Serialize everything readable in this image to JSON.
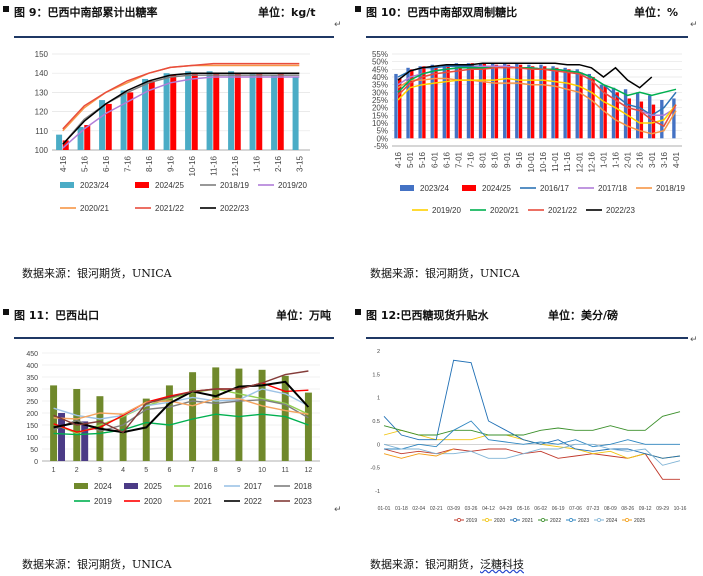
{
  "return_mark": "↵",
  "panels": {
    "p1": {
      "title": "图 9：巴西中南部累计出糖率",
      "unit": "单位：kg/t",
      "source": "数据来源：银河期货，UNICA"
    },
    "p2": {
      "title": "图 10：巴西中南部双周制糖比",
      "unit": "单位：%",
      "source": "数据来源：银河期货，UNICA"
    },
    "p3": {
      "title": "图 11：巴西出口",
      "unit": "单位：万吨",
      "source": "数据来源：银河期货，UNICA"
    },
    "p4": {
      "title": "图 12:巴西糖现货升贴水",
      "unit": "单位：美分/磅",
      "source_prefix": "数据来源：银河期货，",
      "source_link": "泛糖科技"
    }
  },
  "chart_data": [
    {
      "id": "c1",
      "type": "bar+line",
      "title": "",
      "xlabel": "",
      "ylabel": "",
      "ylim": [
        100,
        150
      ],
      "yticks": [
        100,
        110,
        120,
        130,
        140,
        150
      ],
      "categories": [
        "4-16",
        "5-16",
        "6-16",
        "7-16",
        "8-16",
        "9-16",
        "10-16",
        "11-16",
        "12-16",
        "1-16",
        "2-16",
        "3-15"
      ],
      "bars": [
        {
          "name": "2023/24",
          "color": "#4bacc6",
          "values": [
            108,
            112,
            126,
            131,
            137,
            140,
            141,
            141,
            141,
            140,
            139,
            138
          ]
        },
        {
          "name": "2024/25",
          "color": "#ff0000",
          "values": [
            105,
            113,
            124,
            130,
            136,
            139,
            140,
            140,
            140,
            140,
            140,
            null
          ]
        }
      ],
      "lines": [
        {
          "name": "2018/19",
          "color": "#7f7f7f",
          "values": [
            103,
            116,
            124,
            130,
            135,
            138,
            139,
            139,
            139,
            139,
            139,
            139
          ]
        },
        {
          "name": "2019/20",
          "color": "#b07dd8",
          "values": [
            101,
            111,
            119,
            125,
            131,
            135,
            137,
            138,
            138,
            138,
            138,
            138
          ]
        },
        {
          "name": "2020/21",
          "color": "#f79646",
          "values": [
            110,
            122,
            130,
            135,
            140,
            143,
            144,
            144,
            144,
            144,
            144,
            144
          ]
        },
        {
          "name": "2021/22",
          "color": "#e84c3d",
          "values": [
            111,
            123,
            130,
            136,
            140,
            143,
            144,
            145,
            145,
            145,
            145,
            145
          ]
        },
        {
          "name": "2022/23",
          "color": "#000000",
          "values": [
            103,
            115,
            124,
            131,
            136,
            139,
            140,
            140,
            140,
            140,
            140,
            140
          ]
        }
      ]
    },
    {
      "id": "c2",
      "type": "bar+line",
      "title": "",
      "xlabel": "",
      "ylabel": "",
      "ylim": [
        -5,
        55
      ],
      "yticks": [
        "55%",
        "50%",
        "45%",
        "40%",
        "35%",
        "30%",
        "25%",
        "20%",
        "15%",
        "10%",
        "5%",
        "0%",
        "-5%"
      ],
      "categories": [
        "4-16",
        "5-01",
        "5-16",
        "6-01",
        "6-16",
        "7-01",
        "7-16",
        "8-01",
        "8-16",
        "9-01",
        "9-16",
        "10-01",
        "10-16",
        "11-01",
        "11-16",
        "12-01",
        "12-16",
        "1-01",
        "1-16",
        "2-01",
        "2-16",
        "3-01",
        "3-16",
        "4-01"
      ],
      "bars": [
        {
          "name": "2023/24",
          "color": "#4472c4",
          "values": [
            42,
            46,
            47,
            48,
            48,
            49,
            49,
            49,
            49,
            49,
            49,
            48,
            48,
            47,
            46,
            45,
            42,
            35,
            33,
            32,
            30,
            28,
            25,
            26
          ]
        },
        {
          "name": "2024/25",
          "color": "#ff0000",
          "values": [
            39,
            45,
            47,
            47,
            48,
            48,
            49,
            49,
            48,
            48,
            48,
            47,
            47,
            46,
            45,
            43,
            40,
            34,
            30,
            26,
            24,
            22,
            null,
            null
          ]
        }
      ],
      "lines": [
        {
          "name": "2016/17",
          "color": "#2e75b6",
          "values": [
            40,
            44,
            46,
            46,
            47,
            47,
            47,
            47,
            47,
            47,
            46,
            46,
            45,
            45,
            44,
            43,
            40,
            35,
            28,
            22,
            20,
            15,
            20,
            30
          ]
        },
        {
          "name": "2017/18",
          "color": "#b07dd8",
          "values": [
            35,
            40,
            42,
            44,
            45,
            46,
            46,
            47,
            47,
            47,
            46,
            46,
            45,
            45,
            44,
            42,
            38,
            30,
            25,
            20,
            18,
            15,
            15,
            20
          ]
        },
        {
          "name": "2018/19",
          "color": "#f79646",
          "values": [
            33,
            38,
            38,
            39,
            39,
            38,
            38,
            37,
            36,
            36,
            36,
            35,
            35,
            34,
            32,
            30,
            25,
            18,
            12,
            8,
            5,
            3,
            5,
            18
          ]
        },
        {
          "name": "2019/20",
          "color": "#ffd000",
          "values": [
            25,
            33,
            35,
            36,
            37,
            38,
            38,
            38,
            38,
            39,
            38,
            38,
            38,
            37,
            36,
            34,
            30,
            24,
            20,
            15,
            10,
            10,
            12,
            22
          ]
        },
        {
          "name": "2020/21",
          "color": "#00b050",
          "values": [
            30,
            38,
            42,
            44,
            45,
            46,
            46,
            46,
            46,
            46,
            46,
            46,
            45,
            45,
            44,
            43,
            40,
            35,
            32,
            28,
            30,
            28,
            30,
            32
          ]
        },
        {
          "name": "2021/22",
          "color": "#e84c3d",
          "values": [
            28,
            36,
            40,
            42,
            43,
            44,
            45,
            45,
            46,
            46,
            46,
            45,
            45,
            44,
            43,
            42,
            38,
            30,
            25,
            20,
            18,
            12,
            8,
            22
          ]
        },
        {
          "name": "2022/23",
          "color": "#000000",
          "values": [
            38,
            44,
            46,
            47,
            48,
            48,
            48,
            49,
            49,
            49,
            49,
            49,
            49,
            49,
            48,
            48,
            46,
            40,
            46,
            38,
            33,
            40,
            null,
            null
          ]
        }
      ]
    },
    {
      "id": "c3",
      "type": "bar+line",
      "title": "",
      "xlabel": "",
      "ylabel": "",
      "ylim": [
        0,
        450
      ],
      "yticks": [
        0,
        50,
        100,
        150,
        200,
        250,
        300,
        350,
        400,
        450
      ],
      "categories": [
        "1",
        "2",
        "3",
        "4",
        "5",
        "6",
        "7",
        "8",
        "9",
        "10",
        "11",
        "12"
      ],
      "bars": [
        {
          "name": "2024",
          "color": "#70892c",
          "values": [
            315,
            300,
            270,
            195,
            260,
            315,
            370,
            390,
            385,
            380,
            355,
            285
          ]
        },
        {
          "name": "2025",
          "color": "#4b3b86",
          "values": [
            200,
            165,
            null,
            null,
            null,
            null,
            null,
            null,
            null,
            null,
            null,
            null
          ]
        }
      ],
      "lines": [
        {
          "name": "2016",
          "color": "#92d050",
          "values": [
            155,
            115,
            150,
            185,
            230,
            260,
            285,
            300,
            280,
            260,
            240,
            195
          ]
        },
        {
          "name": "2017",
          "color": "#9dc3e6",
          "values": [
            220,
            190,
            175,
            190,
            230,
            245,
            265,
            250,
            255,
            300,
            280,
            230
          ]
        },
        {
          "name": "2018",
          "color": "#7f7f7f",
          "values": [
            130,
            170,
            125,
            150,
            215,
            225,
            250,
            240,
            250,
            255,
            235,
            180
          ]
        },
        {
          "name": "2019",
          "color": "#00b050",
          "values": [
            115,
            110,
            115,
            130,
            160,
            150,
            175,
            195,
            185,
            195,
            185,
            150
          ]
        },
        {
          "name": "2020",
          "color": "#ff0000",
          "values": [
            155,
            120,
            140,
            190,
            245,
            270,
            290,
            300,
            300,
            325,
            290,
            295
          ]
        },
        {
          "name": "2021",
          "color": "#f4a460",
          "values": [
            180,
            175,
            200,
            195,
            245,
            250,
            230,
            260,
            260,
            230,
            210,
            195
          ]
        },
        {
          "name": "2022",
          "color": "#000000",
          "values": [
            140,
            160,
            135,
            120,
            140,
            240,
            290,
            270,
            310,
            315,
            330,
            225
          ]
        },
        {
          "name": "2023",
          "color": "#843c39",
          "values": [
            190,
            150,
            165,
            120,
            240,
            265,
            290,
            300,
            300,
            325,
            360,
            375
          ]
        }
      ]
    },
    {
      "id": "c4",
      "type": "line",
      "title": "",
      "xlabel": "",
      "ylabel": "",
      "ylim": [
        -1,
        2
      ],
      "yticks": [
        "2",
        "1.5",
        "1",
        "0.5",
        "0",
        "-0.5",
        "-1"
      ],
      "categories": [
        "01-01",
        "01-18",
        "02-04",
        "02-21",
        "03-09",
        "03-26",
        "04-12",
        "04-29",
        "05-16",
        "06-02",
        "06-19",
        "07-06",
        "07-23",
        "08-09",
        "08-26",
        "09-12",
        "09-29",
        "10-16"
      ],
      "series": [
        {
          "name": "2019",
          "color": "#c0392b",
          "values": [
            -0.1,
            -0.2,
            -0.15,
            -0.2,
            -0.1,
            -0.15,
            -0.1,
            -0.1,
            -0.2,
            -0.15,
            -0.3,
            -0.25,
            -0.2,
            -0.25,
            -0.3,
            -0.2,
            -0.75,
            -0.75
          ]
        },
        {
          "name": "2020",
          "color": "#f1c40f",
          "values": [
            0.2,
            0.3,
            0.2,
            0.1,
            0.1,
            0.1,
            0.2,
            0.2,
            0.1,
            0.0,
            -0.05,
            -0.1,
            -0.2,
            -0.15,
            -0.3,
            -0.2,
            -0.3,
            -0.25
          ]
        },
        {
          "name": "2021",
          "color": "#1f6fb5",
          "values": [
            0.6,
            0.2,
            0.1,
            0.1,
            1.8,
            1.75,
            0.5,
            0.3,
            0.1,
            0.0,
            0.1,
            -0.1,
            -0.15,
            -0.1,
            -0.1,
            -0.2,
            -0.3,
            -0.25
          ]
        },
        {
          "name": "2022",
          "color": "#3a8f2a",
          "values": [
            0.4,
            0.3,
            0.2,
            0.2,
            0.3,
            0.3,
            0.2,
            0.2,
            0.2,
            0.3,
            0.35,
            0.3,
            0.3,
            0.4,
            0.3,
            0.3,
            0.6,
            0.7
          ]
        },
        {
          "name": "2023",
          "color": "#2e86c1",
          "values": [
            -0.1,
            -0.1,
            0.0,
            -0.05,
            0.3,
            0.5,
            0.1,
            0.05,
            0.0,
            0.05,
            0.0,
            0.1,
            -0.05,
            0.0,
            0.1,
            0.0,
            0.0,
            0.0
          ]
        },
        {
          "name": "2024",
          "color": "#7fb3d5",
          "values": [
            0.0,
            -0.1,
            -0.1,
            -0.2,
            -0.2,
            -0.15,
            -0.3,
            -0.3,
            -0.2,
            -0.1,
            -0.1,
            0.0,
            0.0,
            -0.1,
            -0.15,
            -0.1,
            -0.45,
            -0.35
          ]
        },
        {
          "name": "2025",
          "color": "#f39c12",
          "values": [
            -0.2,
            -0.3,
            -0.2,
            -0.25,
            -0.1,
            null,
            null,
            null,
            null,
            null,
            null,
            null,
            null,
            null,
            null,
            null,
            null,
            null
          ]
        }
      ]
    }
  ]
}
